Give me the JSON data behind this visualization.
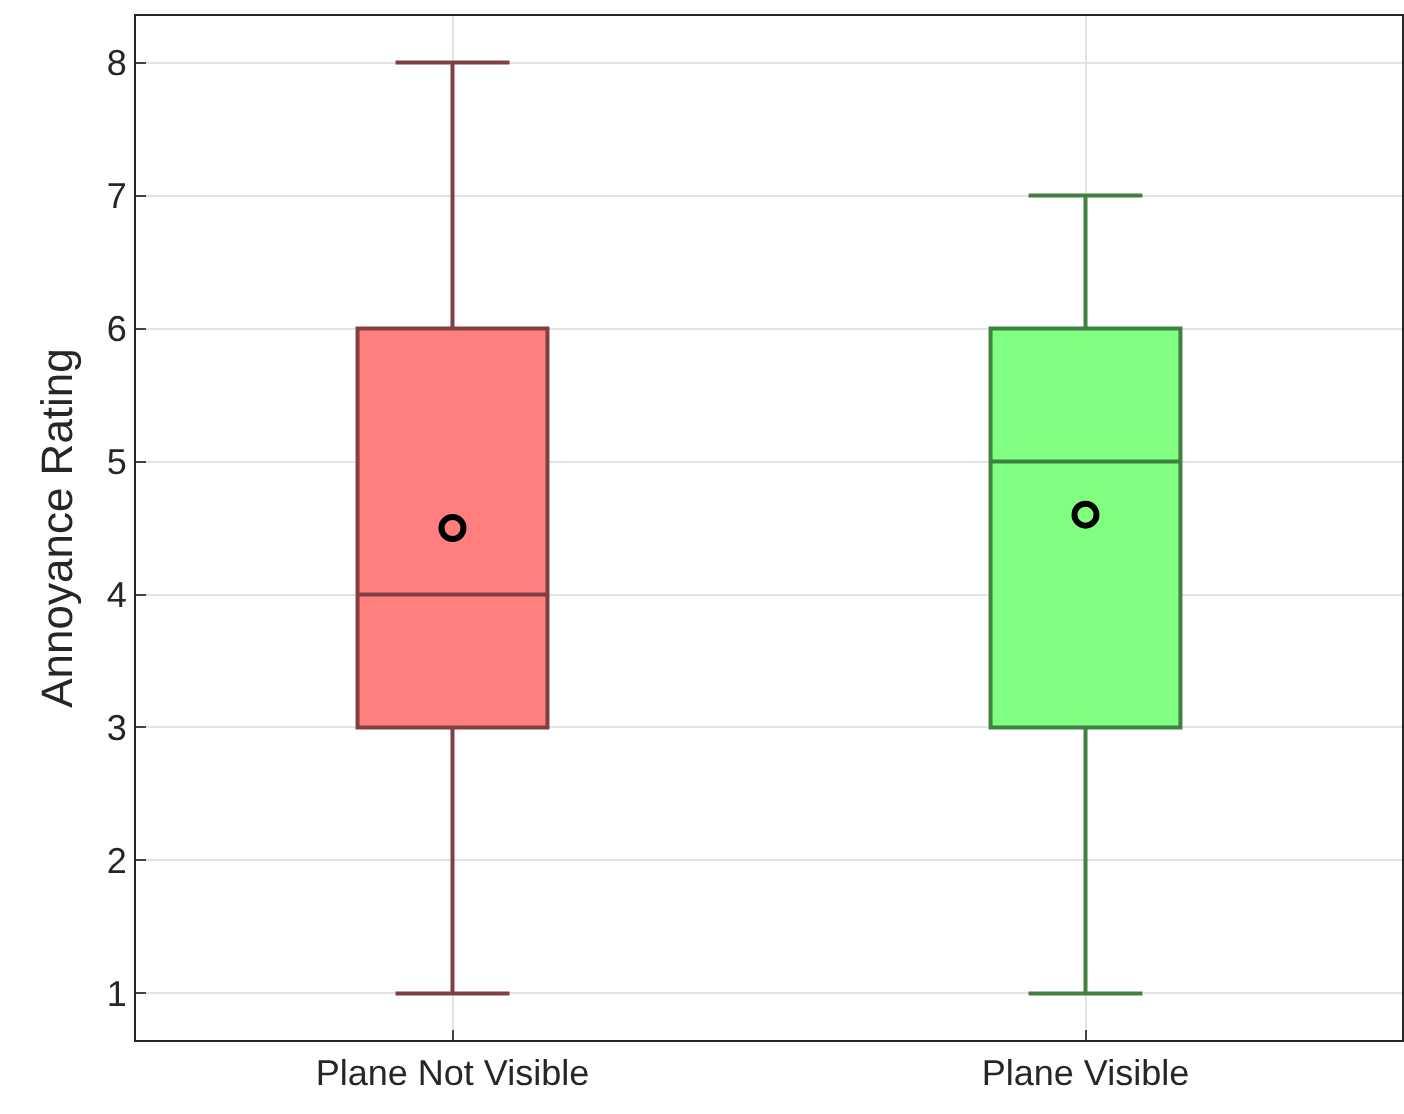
{
  "chart_data": {
    "type": "box",
    "ylabel": "Annoyance Rating",
    "categories": [
      "Plane Not Visible",
      "Plane Visible"
    ],
    "series": [
      {
        "color": "#ff7f7f",
        "boxes": [
          {
            "low": 1,
            "q1": 3,
            "median": 4,
            "q3": 6,
            "high": 8,
            "mean": 4.5
          },
          null
        ]
      },
      {
        "color": "#80ff80",
        "boxes": [
          null,
          {
            "low": 1,
            "q1": 3,
            "median": 5,
            "q3": 6,
            "high": 7,
            "mean": 4.6
          }
        ]
      }
    ],
    "ylim": [
      0.65,
      8.35
    ],
    "yticks": [
      1,
      2,
      3,
      4,
      5,
      6,
      7,
      8
    ],
    "grid": true
  }
}
